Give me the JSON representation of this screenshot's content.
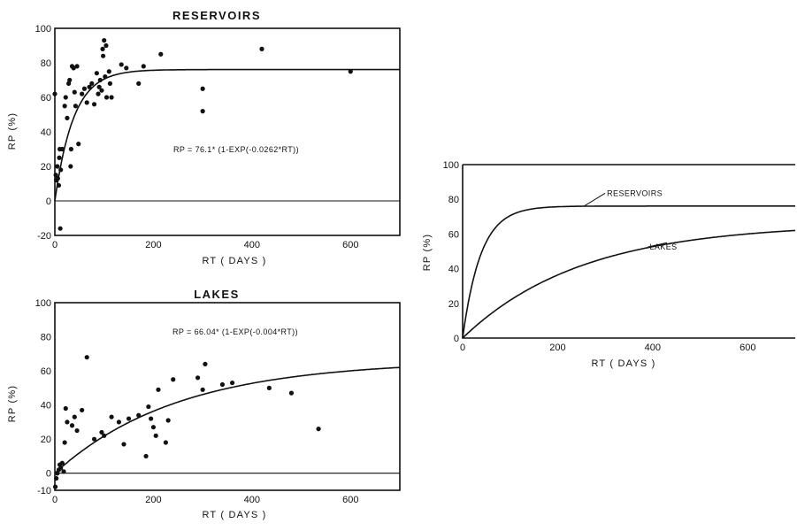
{
  "colors": {
    "ink": "#111111",
    "background": "#ffffff"
  },
  "chart_data": [
    {
      "id": "reservoirs",
      "type": "scatter",
      "title": "RESERVOIRS",
      "xlabel": "RT ( DAYS )",
      "ylabel": "RP (%)",
      "xlim": [
        0,
        700
      ],
      "ylim": [
        -20,
        100
      ],
      "xticks": [
        0,
        200,
        400,
        600
      ],
      "yticks": [
        -20,
        0,
        20,
        40,
        60,
        80,
        100
      ],
      "ytick_labels": [
        "-20",
        "0",
        "20",
        "40",
        "60",
        "80",
        "100"
      ],
      "zero_line": true,
      "grid": false,
      "equation": "RP = 76.1* (1-EXP(-0.0262*RT))",
      "fit": {
        "a": 76.1,
        "k": 0.0262
      },
      "series": [
        {
          "points": [
            [
              0,
              62
            ],
            [
              2,
              15
            ],
            [
              3,
              12
            ],
            [
              5,
              20
            ],
            [
              6,
              13
            ],
            [
              8,
              9
            ],
            [
              9,
              25
            ],
            [
              10,
              30
            ],
            [
              11,
              -16
            ],
            [
              12,
              18
            ],
            [
              15,
              30
            ],
            [
              20,
              55
            ],
            [
              22,
              60
            ],
            [
              25,
              48
            ],
            [
              28,
              68
            ],
            [
              30,
              70
            ],
            [
              32,
              20
            ],
            [
              33,
              30
            ],
            [
              35,
              78
            ],
            [
              38,
              77
            ],
            [
              40,
              63
            ],
            [
              42,
              55
            ],
            [
              45,
              78
            ],
            [
              48,
              33
            ],
            [
              55,
              62
            ],
            [
              60,
              65
            ],
            [
              65,
              57
            ],
            [
              70,
              66
            ],
            [
              75,
              68
            ],
            [
              80,
              56
            ],
            [
              85,
              74
            ],
            [
              88,
              62
            ],
            [
              90,
              66
            ],
            [
              92,
              70
            ],
            [
              95,
              64
            ],
            [
              97,
              88
            ],
            [
              98,
              84
            ],
            [
              100,
              93
            ],
            [
              102,
              72
            ],
            [
              104,
              90
            ],
            [
              105,
              60
            ],
            [
              110,
              75
            ],
            [
              112,
              68
            ],
            [
              115,
              60
            ],
            [
              135,
              79
            ],
            [
              145,
              77
            ],
            [
              170,
              68
            ],
            [
              180,
              78
            ],
            [
              215,
              85
            ],
            [
              300,
              65
            ],
            [
              300,
              52
            ],
            [
              420,
              88
            ],
            [
              600,
              75
            ]
          ]
        }
      ]
    },
    {
      "id": "lakes",
      "type": "scatter",
      "title": "LAKES",
      "xlabel": "RT ( DAYS )",
      "ylabel": "RP (%)",
      "xlim": [
        0,
        700
      ],
      "ylim": [
        -10,
        100
      ],
      "xticks": [
        0,
        200,
        400,
        600
      ],
      "yticks": [
        -10,
        0,
        20,
        40,
        60,
        80,
        100
      ],
      "ytick_labels": [
        "-10",
        "0",
        "20",
        "40",
        "60",
        "80",
        "100"
      ],
      "zero_line": true,
      "grid": false,
      "equation": "RP = 66.04* (1-EXP(-0.004*RT))",
      "fit": {
        "a": 66.04,
        "k": 0.004
      },
      "series": [
        {
          "points": [
            [
              1,
              -8
            ],
            [
              3,
              -3
            ],
            [
              5,
              0
            ],
            [
              8,
              2
            ],
            [
              10,
              5
            ],
            [
              12,
              3
            ],
            [
              15,
              6
            ],
            [
              18,
              1
            ],
            [
              20,
              18
            ],
            [
              22,
              38
            ],
            [
              25,
              30
            ],
            [
              35,
              28
            ],
            [
              40,
              33
            ],
            [
              45,
              25
            ],
            [
              55,
              37
            ],
            [
              65,
              68
            ],
            [
              80,
              20
            ],
            [
              95,
              24
            ],
            [
              100,
              22
            ],
            [
              115,
              33
            ],
            [
              130,
              30
            ],
            [
              140,
              17
            ],
            [
              150,
              32
            ],
            [
              170,
              34
            ],
            [
              185,
              10
            ],
            [
              190,
              39
            ],
            [
              195,
              32
            ],
            [
              200,
              27
            ],
            [
              205,
              22
            ],
            [
              210,
              49
            ],
            [
              225,
              18
            ],
            [
              230,
              31
            ],
            [
              240,
              55
            ],
            [
              290,
              56
            ],
            [
              300,
              49
            ],
            [
              305,
              64
            ],
            [
              340,
              52
            ],
            [
              360,
              53
            ],
            [
              435,
              50
            ],
            [
              480,
              47
            ],
            [
              535,
              26
            ]
          ]
        }
      ]
    },
    {
      "id": "comparison",
      "type": "line",
      "title": "",
      "xlabel": "RT ( DAYS )",
      "ylabel": "RP (%)",
      "xlim": [
        0,
        700
      ],
      "ylim": [
        0,
        100
      ],
      "xticks": [
        0,
        200,
        400,
        600
      ],
      "yticks": [
        0,
        20,
        40,
        60,
        80,
        100
      ],
      "ytick_labels": [
        "0",
        "20",
        "40",
        "60",
        "80",
        "100"
      ],
      "zero_line": false,
      "grid": false,
      "series": [
        {
          "name": "RESERVOIRS",
          "a": 76.1,
          "k": 0.0262,
          "label_at": [
            300,
            82
          ],
          "leader_to": [
            255,
            76
          ]
        },
        {
          "name": "LAKES",
          "a": 66.04,
          "k": 0.004,
          "label_at": [
            390,
            51
          ],
          "leader_to": [
            430,
            55
          ]
        }
      ]
    }
  ]
}
